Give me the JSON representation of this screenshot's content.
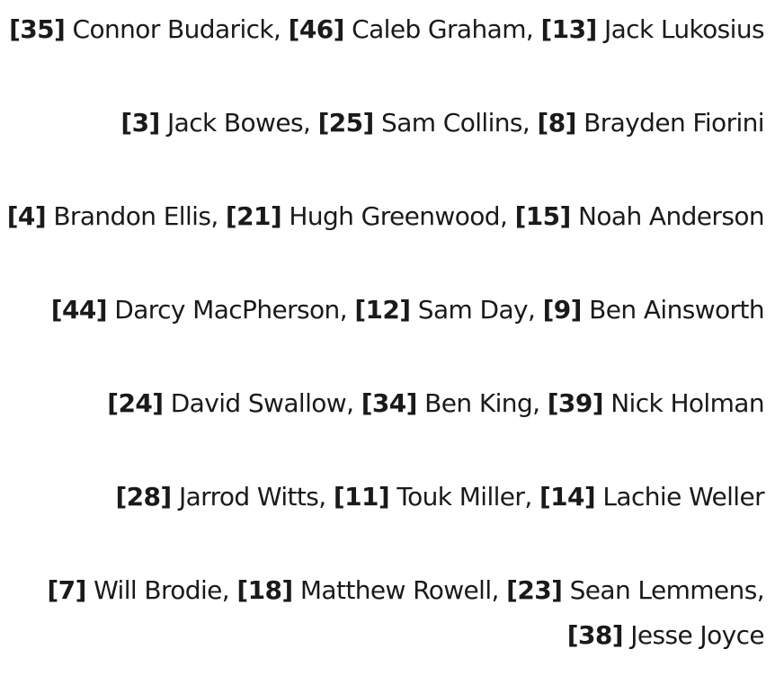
{
  "lines": [
    {
      "players": [
        {
          "number": "[35]",
          "name": " Connor Budarick"
        },
        {
          "number": "[46]",
          "name": " Caleb Graham"
        },
        {
          "number": "[13]",
          "name": " Jack Lukosius"
        }
      ]
    },
    {
      "players": [
        {
          "number": "[3]",
          "name": " Jack Bowes"
        },
        {
          "number": "[25]",
          "name": " Sam Collins"
        },
        {
          "number": "[8]",
          "name": " Brayden Fiorini"
        }
      ]
    },
    {
      "players": [
        {
          "number": "[4]",
          "name": " Brandon Ellis"
        },
        {
          "number": "[21]",
          "name": " Hugh Greenwood"
        },
        {
          "number": "[15]",
          "name": " Noah Anderson"
        }
      ]
    },
    {
      "players": [
        {
          "number": "[44]",
          "name": " Darcy MacPherson"
        },
        {
          "number": "[12]",
          "name": " Sam Day"
        },
        {
          "number": "[9]",
          "name": " Ben Ainsworth"
        }
      ]
    },
    {
      "players": [
        {
          "number": "[24]",
          "name": " David Swallow"
        },
        {
          "number": "[34]",
          "name": " Ben King"
        },
        {
          "number": "[39]",
          "name": " Nick Holman"
        }
      ]
    },
    {
      "players": [
        {
          "number": "[28]",
          "name": " Jarrod Witts"
        },
        {
          "number": "[11]",
          "name": " Touk Miller"
        },
        {
          "number": "[14]",
          "name": " Lachie Weller"
        }
      ]
    },
    {
      "players": [
        {
          "number": "[7]",
          "name": " Will Brodie"
        },
        {
          "number": "[18]",
          "name": " Matthew Rowell"
        },
        {
          "number": "[23]",
          "name": " Sean Lemmens"
        },
        {
          "number": "[38]",
          "name": " Jesse Joyce"
        }
      ]
    }
  ]
}
